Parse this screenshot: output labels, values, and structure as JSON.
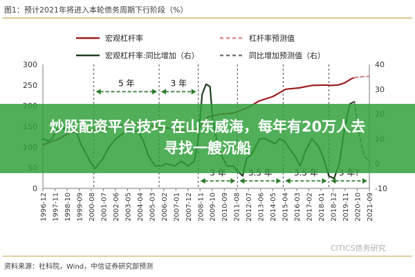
{
  "chart_data": {
    "type": "line",
    "title": "图1：预计2021年将进入本轮债务周期下行阶段（%）",
    "source": "资料来源：社科院，Wind，中信证券研究部预测",
    "watermark": "CITICS债务研究",
    "y_left": {
      "ylim": [
        0,
        300
      ],
      "ticks": [
        0,
        50,
        100,
        150,
        200,
        250,
        300
      ]
    },
    "y_right": {
      "ylim": [
        -10,
        40
      ],
      "ticks": [
        -10,
        0,
        10,
        20,
        30,
        40
      ]
    },
    "x_ticks": [
      "1996-12",
      "1997-11",
      "1998-10",
      "1999-09",
      "2000-08",
      "2001-07",
      "2002-06",
      "2003-05",
      "2004-04",
      "2005-03",
      "2006-02",
      "2007-01",
      "2007-12",
      "2008-11",
      "2009-10",
      "2010-09",
      "2011-08",
      "2012-07",
      "2013-06",
      "2014-05",
      "2015-04",
      "2016-03",
      "2017-02",
      "2018-01",
      "2018-12",
      "2019-11",
      "2020-10",
      "2021-09"
    ],
    "series": [
      {
        "name": "宏观杠杆率",
        "axis": "left",
        "color": "#9b1c1c",
        "style": "solid",
        "x": [
          1996.9,
          1998.0,
          1999.0,
          2000.5,
          2001.5,
          2002.5,
          2003.5,
          2004.5,
          2005.5,
          2006.5,
          2007.5,
          2008.5,
          2009.0,
          2009.5,
          2010.5,
          2011.5,
          2012.5,
          2013.5,
          2014.5,
          2015.5,
          2016.5,
          2017.5,
          2018.5,
          2019.0,
          2019.5,
          2020.0,
          2020.5,
          2020.75
        ],
        "values": [
          105,
          118,
          135,
          140,
          143,
          150,
          158,
          156,
          150,
          146,
          140,
          140,
          150,
          172,
          180,
          182,
          194,
          212,
          222,
          240,
          243,
          249,
          250,
          249,
          250,
          255,
          265,
          268
        ]
      },
      {
        "name": "宏观杠杆率:同比增加（右）",
        "axis": "right",
        "color": "#1e3d1e",
        "style": "solid",
        "x": [
          1996.9,
          1997.3,
          1997.6,
          1998.0,
          1998.5,
          1998.8,
          1999.3,
          1999.8,
          2000.3,
          2000.6,
          2000.9,
          2001.5,
          2002.0,
          2002.5,
          2003.0,
          2003.5,
          2003.8,
          2004.2,
          2004.6,
          2005.0,
          2005.5,
          2006.0,
          2006.3,
          2006.7,
          2007.0,
          2007.5,
          2008.0,
          2008.5,
          2008.8,
          2009.1,
          2009.4,
          2009.7,
          2009.9,
          2010.3,
          2010.6,
          2011.0,
          2011.5,
          2011.8,
          2012.2,
          2012.5,
          2012.9,
          2013.2,
          2013.5,
          2013.9,
          2014.3,
          2014.7,
          2015.0,
          2015.4,
          2015.8,
          2016.2,
          2016.6,
          2017.0,
          2017.5,
          2018.0,
          2018.4,
          2018.8,
          2019.2,
          2019.6,
          2020.0,
          2020.4,
          2020.75
        ],
        "values": [
          10,
          9,
          10,
          14,
          14,
          16,
          15,
          8,
          3,
          0,
          -2,
          2,
          7,
          10,
          12,
          14,
          13,
          13,
          9,
          3,
          -1,
          -1,
          0,
          -0.5,
          -1,
          1,
          -1,
          1,
          10,
          28,
          32,
          31,
          18,
          7,
          3,
          -1,
          -1,
          -3,
          -5,
          2,
          4,
          7,
          10,
          10,
          9,
          8,
          10,
          9,
          6,
          3,
          -1,
          5,
          10,
          7,
          2,
          -5,
          -6,
          0,
          14,
          24,
          25
        ]
      },
      {
        "name": "杠杆率预测值",
        "axis": "left",
        "color": "#d98888",
        "style": "dashed",
        "x": [
          2020.75,
          2021.3,
          2021.9
        ],
        "values": [
          268,
          270,
          271
        ]
      },
      {
        "name": "同比增加预测值（右）",
        "axis": "right",
        "color": "#777777",
        "style": "dashed",
        "x": [
          2020.75,
          2021.1,
          2021.5,
          2021.9
        ],
        "values": [
          25,
          12,
          3,
          1
        ]
      }
    ],
    "annotations": [
      {
        "label": "5 年",
        "x_from": 2000.8,
        "x_to": 2005.8,
        "y_right": 29
      },
      {
        "label": "3 年",
        "x_from": 2005.8,
        "x_to": 2008.8,
        "y_right": 29
      },
      {
        "label": "3 年",
        "x_from": 2008.8,
        "x_to": 2011.8,
        "y_right": -7
      },
      {
        "label": "3.5 年",
        "x_from": 2011.8,
        "x_to": 2015.3,
        "y_right": -7
      },
      {
        "label": "3.5 年",
        "x_from": 2015.3,
        "x_to": 2018.8,
        "y_right": -7
      },
      {
        "label": "3 年?",
        "x_from": 2018.8,
        "x_to": 2021.9,
        "y_right": -7
      }
    ],
    "cycle_lines_x": [
      2000.8,
      2005.8,
      2008.8,
      2011.8,
      2015.3,
      2018.8
    ]
  },
  "overlay": {
    "line1": "炒股配资平台技巧 在山东威海，每年有20万人去",
    "line2": "寻找一艘沉船"
  }
}
